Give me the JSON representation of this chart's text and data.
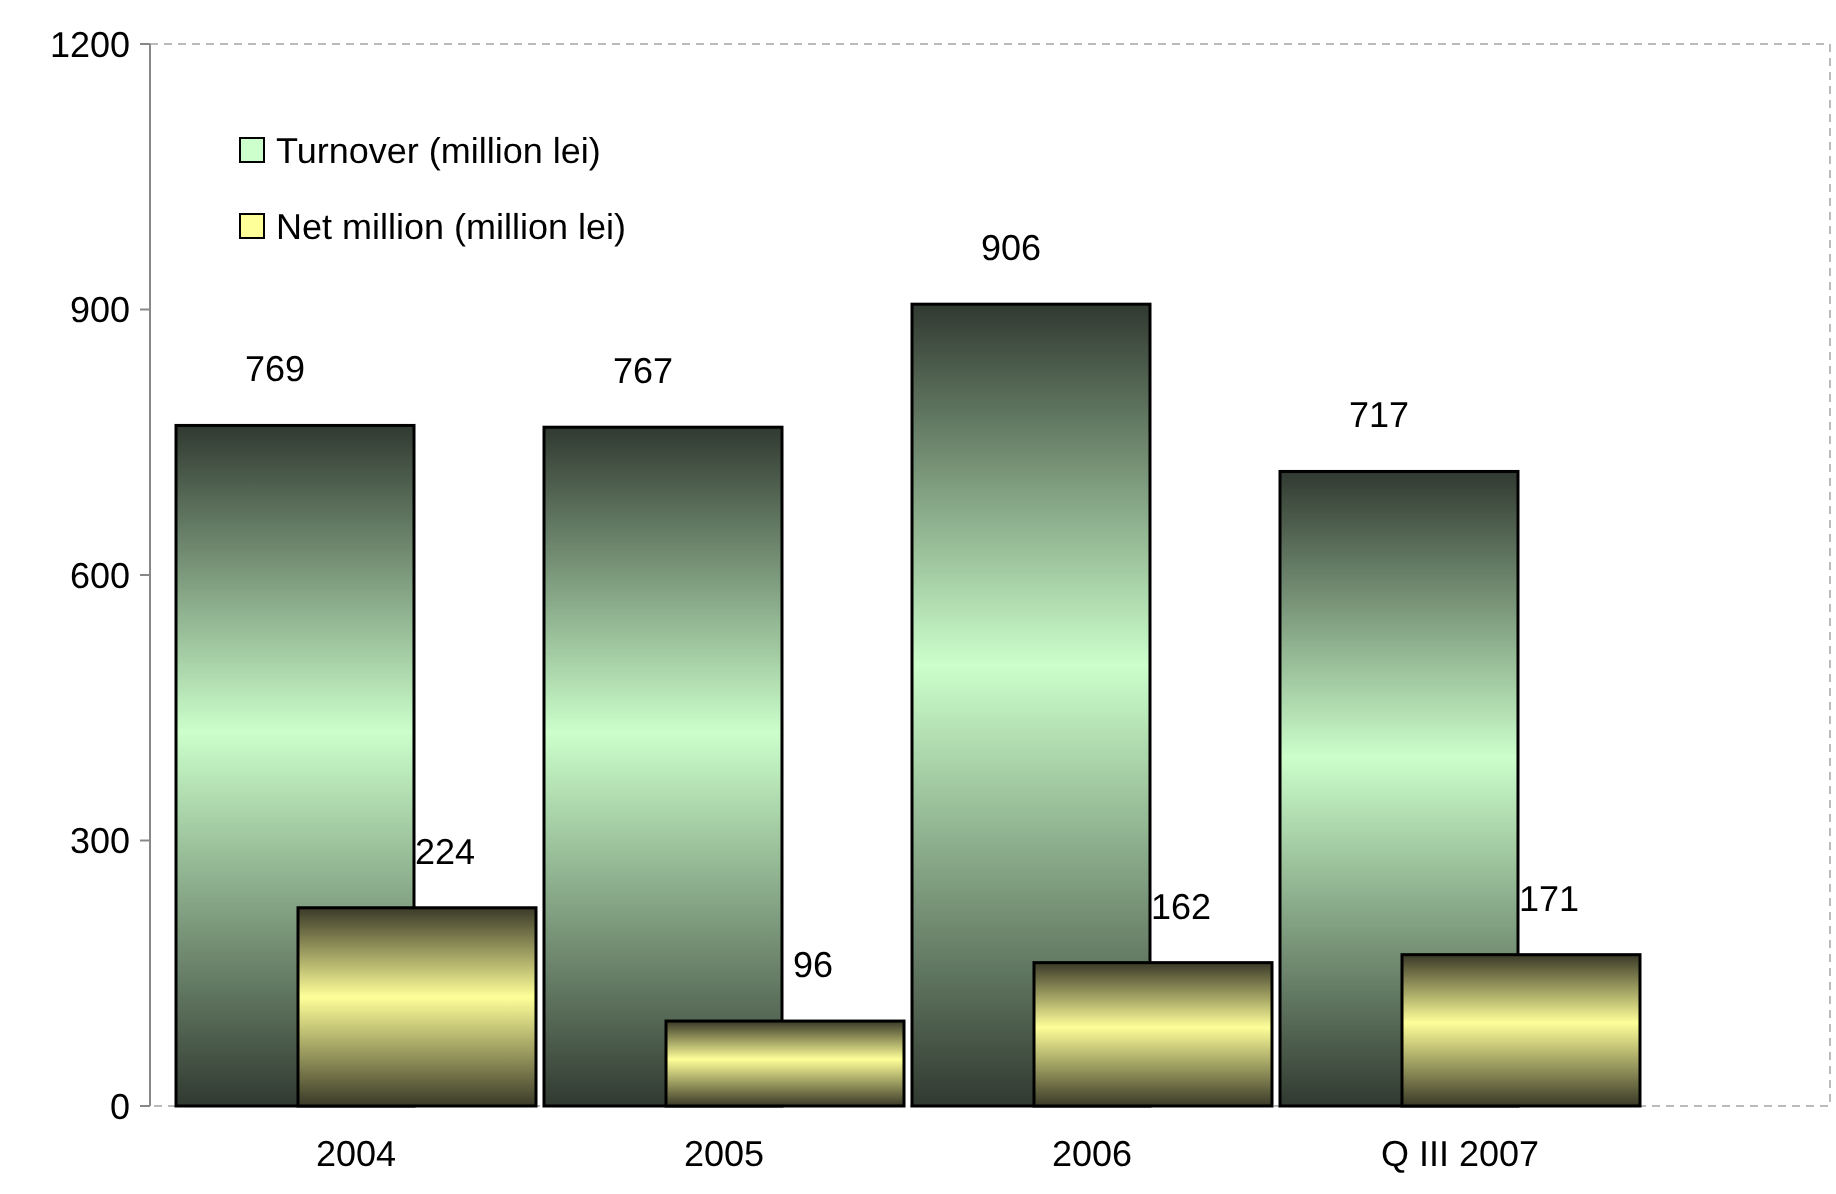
{
  "chart_data": {
    "type": "bar",
    "categories": [
      "2004",
      "2005",
      "2006",
      "Q III 2007"
    ],
    "series": [
      {
        "name": "Turnover (million lei)",
        "color": "#ccffcc",
        "values": [
          769,
          767,
          906,
          717
        ]
      },
      {
        "name": "Net million (million lei)",
        "color": "#ffff99",
        "values": [
          224,
          96,
          162,
          171
        ]
      }
    ],
    "ylim": [
      0,
      1200
    ],
    "yticks": [
      0,
      300,
      600,
      900,
      1200
    ],
    "grid": false,
    "legend": "top left",
    "data_labels": true
  }
}
